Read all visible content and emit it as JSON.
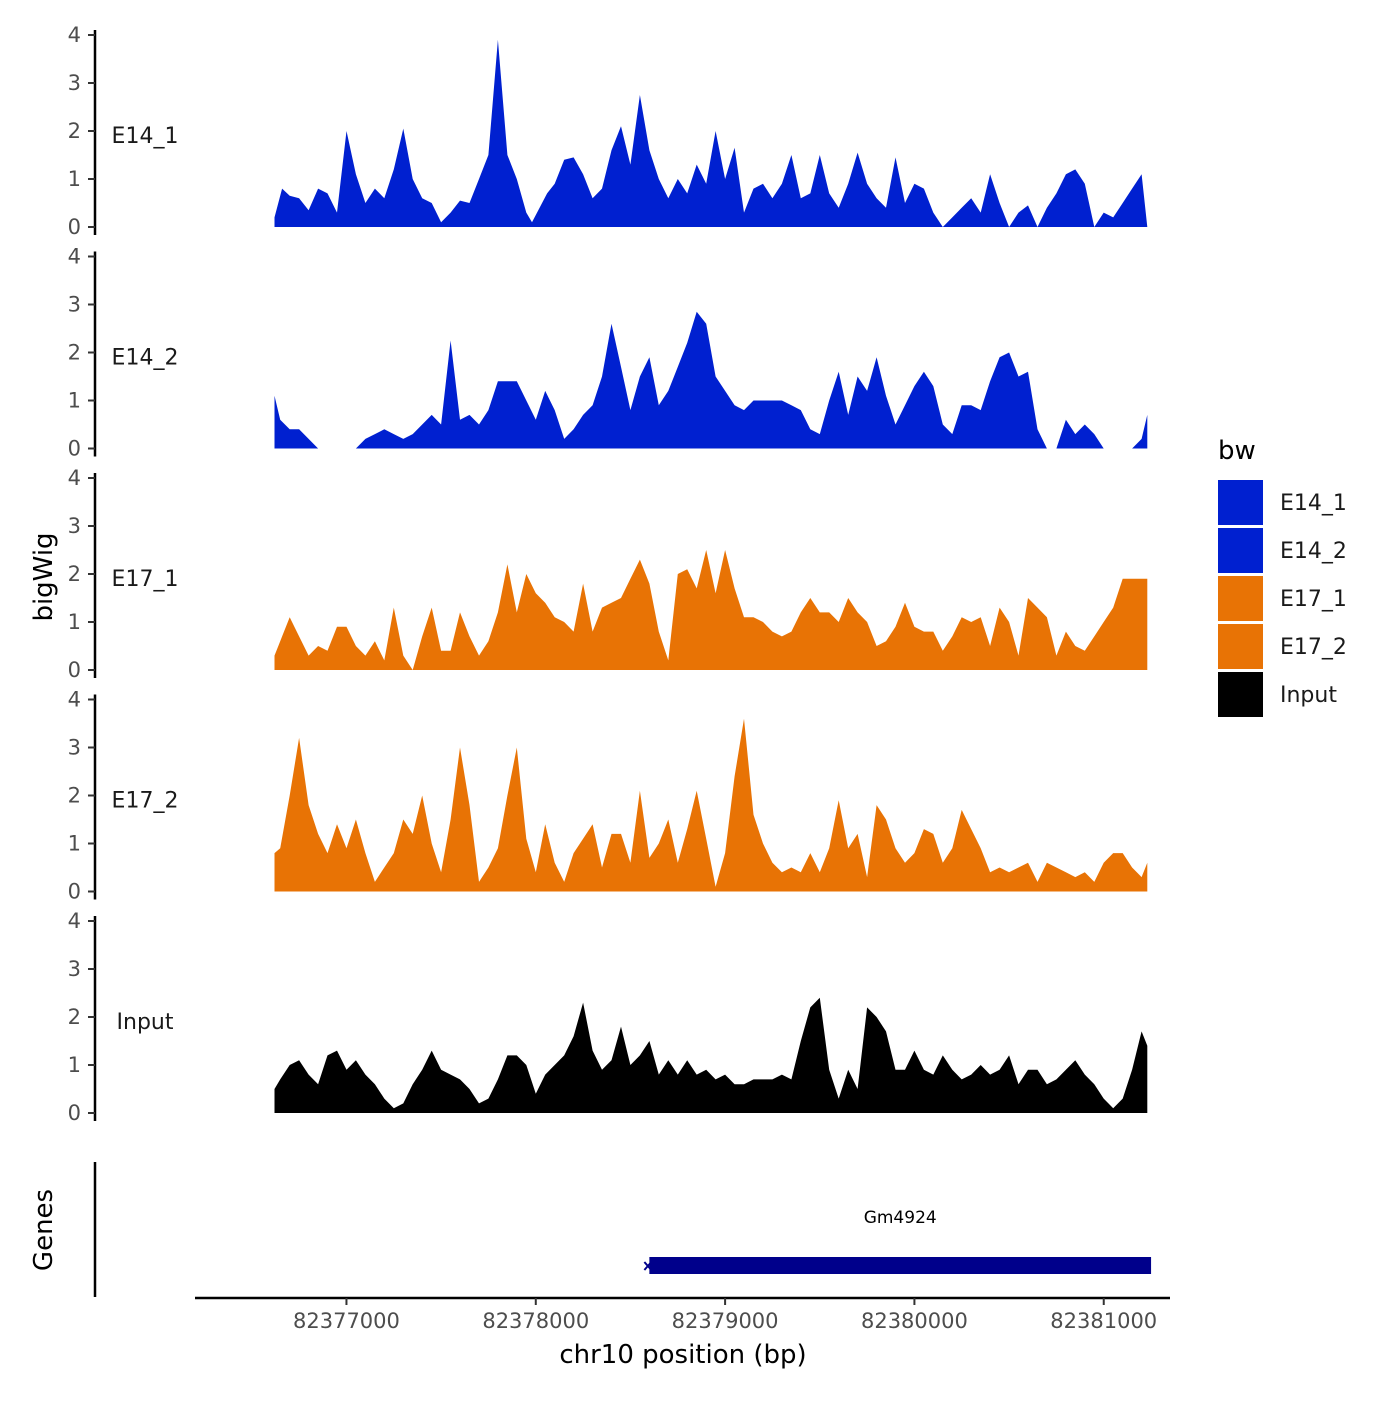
{
  "chart_data": {
    "type": "area",
    "title": "",
    "ylabel": "bigWig",
    "xlabel": "chr10 position (bp)",
    "xlim": [
      82376200,
      82381350
    ],
    "ylim": [
      0,
      4
    ],
    "yticks": [
      "0",
      "1",
      "2",
      "3",
      "4"
    ],
    "xticks": [
      {
        "value": 82377000,
        "label": "82377000"
      },
      {
        "value": 82378000,
        "label": "82378000"
      },
      {
        "value": 82379000,
        "label": "82379000"
      },
      {
        "value": 82380000,
        "label": "82380000"
      },
      {
        "value": 82381000,
        "label": "82381000"
      }
    ],
    "legend": {
      "title": "bw",
      "placement": "right",
      "entries": [
        {
          "label": "E14_1",
          "color": "#0020D0"
        },
        {
          "label": "E14_2",
          "color": "#0020D0"
        },
        {
          "label": "E17_1",
          "color": "#E87305"
        },
        {
          "label": "E17_2",
          "color": "#E87305"
        },
        {
          "label": "Input",
          "color": "#000000"
        }
      ]
    },
    "series": [
      {
        "name": "E14_1",
        "color": "#0020D0",
        "x": [
          82376620,
          82376660,
          82376700,
          82376750,
          82376800,
          82376850,
          82376900,
          82376950,
          82377000,
          82377050,
          82377100,
          82377150,
          82377200,
          82377250,
          82377300,
          82377350,
          82377400,
          82377450,
          82377500,
          82377550,
          82377600,
          82377650,
          82377700,
          82377750,
          82377800,
          82377850,
          82377900,
          82377950,
          82377980,
          82378020,
          82378060,
          82378100,
          82378150,
          82378200,
          82378250,
          82378300,
          82378350,
          82378400,
          82378450,
          82378500,
          82378550,
          82378600,
          82378650,
          82378700,
          82378750,
          82378800,
          82378850,
          82378900,
          82378950,
          82379000,
          82379050,
          82379100,
          82379150,
          82379200,
          82379250,
          82379300,
          82379350,
          82379400,
          82379450,
          82379500,
          82379550,
          82379600,
          82379650,
          82379700,
          82379750,
          82379800,
          82379850,
          82379900,
          82379950,
          82380000,
          82380050,
          82380100,
          82380150,
          82380200,
          82380250,
          82380300,
          82380350,
          82380400,
          82380450,
          82380500,
          82380550,
          82380600,
          82380650,
          82380700,
          82380750,
          82380800,
          82380850,
          82380900,
          82380950,
          82381000,
          82381050,
          82381100,
          82381150,
          82381200,
          82381230
        ],
        "values": [
          0.2,
          0.8,
          0.65,
          0.6,
          0.35,
          0.8,
          0.7,
          0.3,
          2.0,
          1.1,
          0.5,
          0.8,
          0.6,
          1.2,
          2.05,
          1.0,
          0.6,
          0.5,
          0.1,
          0.3,
          0.55,
          0.5,
          1.0,
          1.5,
          3.9,
          1.5,
          1.0,
          0.3,
          0.1,
          0.4,
          0.7,
          0.9,
          1.4,
          1.45,
          1.1,
          0.6,
          0.8,
          1.6,
          2.1,
          1.3,
          2.75,
          1.6,
          1.0,
          0.6,
          1.0,
          0.7,
          1.3,
          0.9,
          2.0,
          1.0,
          1.65,
          0.3,
          0.8,
          0.9,
          0.6,
          0.9,
          1.5,
          0.6,
          0.7,
          1.5,
          0.7,
          0.4,
          0.9,
          1.55,
          0.9,
          0.6,
          0.4,
          1.45,
          0.5,
          0.9,
          0.8,
          0.3,
          0.0,
          0.2,
          0.4,
          0.6,
          0.3,
          1.1,
          0.5,
          0.0,
          0.3,
          0.45,
          0.0,
          0.4,
          0.7,
          1.1,
          1.2,
          0.9,
          0.0,
          0.3,
          0.2,
          0.5,
          0.8,
          1.1,
          0.0
        ]
      },
      {
        "name": "E14_2",
        "color": "#0020D0",
        "x": [
          82376620,
          82376650,
          82376700,
          82376750,
          82376800,
          82376850,
          82376900,
          82376950,
          82377000,
          82377050,
          82377100,
          82377150,
          82377200,
          82377250,
          82377300,
          82377350,
          82377400,
          82377450,
          82377500,
          82377550,
          82377600,
          82377650,
          82377700,
          82377750,
          82377800,
          82377850,
          82377900,
          82377950,
          82378000,
          82378050,
          82378100,
          82378150,
          82378200,
          82378250,
          82378300,
          82378350,
          82378400,
          82378450,
          82378500,
          82378550,
          82378600,
          82378650,
          82378700,
          82378750,
          82378800,
          82378850,
          82378900,
          82378950,
          82379000,
          82379050,
          82379100,
          82379150,
          82379200,
          82379250,
          82379300,
          82379350,
          82379400,
          82379450,
          82379500,
          82379550,
          82379600,
          82379650,
          82379700,
          82379750,
          82379800,
          82379850,
          82379900,
          82379950,
          82380000,
          82380050,
          82380100,
          82380150,
          82380200,
          82380250,
          82380300,
          82380350,
          82380400,
          82380450,
          82380500,
          82380550,
          82380600,
          82380650,
          82380700,
          82380750,
          82380800,
          82380850,
          82380900,
          82380950,
          82381000,
          82381050,
          82381100,
          82381150,
          82381200,
          82381230
        ],
        "values": [
          1.1,
          0.6,
          0.4,
          0.4,
          0.2,
          0.0,
          0.0,
          0.0,
          0.0,
          0.0,
          0.2,
          0.3,
          0.4,
          0.3,
          0.2,
          0.3,
          0.5,
          0.7,
          0.5,
          2.25,
          0.6,
          0.7,
          0.5,
          0.8,
          1.4,
          1.4,
          1.4,
          1.0,
          0.6,
          1.2,
          0.8,
          0.2,
          0.4,
          0.7,
          0.9,
          1.5,
          2.6,
          1.7,
          0.8,
          1.5,
          1.9,
          0.9,
          1.2,
          1.7,
          2.2,
          2.85,
          2.6,
          1.5,
          1.2,
          0.9,
          0.8,
          1.0,
          1.0,
          1.0,
          1.0,
          0.9,
          0.8,
          0.4,
          0.3,
          1.0,
          1.6,
          0.7,
          1.5,
          1.2,
          1.9,
          1.1,
          0.5,
          0.9,
          1.3,
          1.6,
          1.3,
          0.5,
          0.3,
          0.9,
          0.9,
          0.8,
          1.4,
          1.9,
          2.0,
          1.5,
          1.6,
          0.4,
          0.0,
          0.0,
          0.6,
          0.3,
          0.5,
          0.3,
          0.0,
          0.0,
          0.0,
          0.0,
          0.2,
          0.7
        ]
      },
      {
        "name": "E17_1",
        "color": "#E87305",
        "x": [
          82376620,
          82376650,
          82376700,
          82376750,
          82376800,
          82376850,
          82376900,
          82376950,
          82377000,
          82377050,
          82377100,
          82377150,
          82377200,
          82377250,
          82377300,
          82377350,
          82377400,
          82377450,
          82377500,
          82377550,
          82377600,
          82377650,
          82377700,
          82377750,
          82377800,
          82377850,
          82377900,
          82377950,
          82378000,
          82378050,
          82378100,
          82378150,
          82378200,
          82378250,
          82378300,
          82378350,
          82378400,
          82378450,
          82378500,
          82378550,
          82378600,
          82378650,
          82378700,
          82378750,
          82378800,
          82378850,
          82378900,
          82378950,
          82379000,
          82379050,
          82379100,
          82379150,
          82379200,
          82379250,
          82379300,
          82379350,
          82379400,
          82379450,
          82379500,
          82379550,
          82379600,
          82379650,
          82379700,
          82379750,
          82379800,
          82379850,
          82379900,
          82379950,
          82380000,
          82380050,
          82380100,
          82380150,
          82380200,
          82380250,
          82380300,
          82380350,
          82380400,
          82380450,
          82380500,
          82380550,
          82380600,
          82380650,
          82380700,
          82380750,
          82380800,
          82380850,
          82380900,
          82380950,
          82381000,
          82381050,
          82381100,
          82381150,
          82381200,
          82381230
        ],
        "values": [
          0.3,
          0.6,
          1.1,
          0.7,
          0.3,
          0.5,
          0.4,
          0.9,
          0.9,
          0.5,
          0.3,
          0.6,
          0.2,
          1.3,
          0.3,
          0.0,
          0.7,
          1.3,
          0.4,
          0.4,
          1.2,
          0.7,
          0.3,
          0.6,
          1.2,
          2.2,
          1.2,
          2.0,
          1.6,
          1.4,
          1.1,
          1.0,
          0.8,
          1.8,
          0.8,
          1.3,
          1.4,
          1.5,
          1.9,
          2.3,
          1.8,
          0.8,
          0.2,
          2.0,
          2.1,
          1.7,
          2.5,
          1.6,
          2.5,
          1.7,
          1.1,
          1.1,
          1.0,
          0.8,
          0.7,
          0.8,
          1.2,
          1.5,
          1.2,
          1.2,
          1.0,
          1.5,
          1.2,
          1.0,
          0.5,
          0.6,
          0.9,
          1.4,
          0.9,
          0.8,
          0.8,
          0.4,
          0.7,
          1.1,
          1.0,
          1.1,
          0.5,
          1.3,
          1.0,
          0.3,
          1.5,
          1.3,
          1.1,
          0.3,
          0.8,
          0.5,
          0.4,
          0.7,
          1.0,
          1.3,
          1.9,
          1.9,
          1.9,
          1.9
        ]
      },
      {
        "name": "E17_2",
        "color": "#E87305",
        "x": [
          82376620,
          82376650,
          82376700,
          82376750,
          82376800,
          82376850,
          82376900,
          82376950,
          82377000,
          82377050,
          82377100,
          82377150,
          82377200,
          82377250,
          82377300,
          82377350,
          82377400,
          82377450,
          82377500,
          82377550,
          82377600,
          82377650,
          82377700,
          82377750,
          82377800,
          82377850,
          82377900,
          82377950,
          82378000,
          82378050,
          82378100,
          82378150,
          82378200,
          82378250,
          82378300,
          82378350,
          82378400,
          82378450,
          82378500,
          82378550,
          82378600,
          82378650,
          82378700,
          82378750,
          82378800,
          82378850,
          82378900,
          82378950,
          82379000,
          82379050,
          82379100,
          82379150,
          82379200,
          82379250,
          82379300,
          82379350,
          82379400,
          82379450,
          82379500,
          82379550,
          82379600,
          82379650,
          82379700,
          82379750,
          82379800,
          82379850,
          82379900,
          82379950,
          82380000,
          82380050,
          82380100,
          82380150,
          82380200,
          82380250,
          82380300,
          82380350,
          82380400,
          82380450,
          82380500,
          82380550,
          82380600,
          82380650,
          82380700,
          82380750,
          82380800,
          82380850,
          82380900,
          82380950,
          82381000,
          82381050,
          82381100,
          82381150,
          82381200,
          82381230
        ],
        "values": [
          0.8,
          0.9,
          2.0,
          3.2,
          1.8,
          1.2,
          0.8,
          1.4,
          0.9,
          1.5,
          0.8,
          0.2,
          0.5,
          0.8,
          1.5,
          1.2,
          2.0,
          1.0,
          0.4,
          1.5,
          3.0,
          1.8,
          0.2,
          0.5,
          0.9,
          2.0,
          3.0,
          1.1,
          0.4,
          1.4,
          0.6,
          0.2,
          0.8,
          1.1,
          1.4,
          0.5,
          1.2,
          1.2,
          0.6,
          2.1,
          0.7,
          1.0,
          1.5,
          0.6,
          1.3,
          2.1,
          1.1,
          0.1,
          0.8,
          2.4,
          3.6,
          1.6,
          1.0,
          0.6,
          0.4,
          0.5,
          0.4,
          0.8,
          0.4,
          0.9,
          1.9,
          0.9,
          1.2,
          0.3,
          1.8,
          1.5,
          0.9,
          0.6,
          0.8,
          1.3,
          1.2,
          0.6,
          0.9,
          1.7,
          1.3,
          0.9,
          0.4,
          0.5,
          0.4,
          0.5,
          0.6,
          0.2,
          0.6,
          0.5,
          0.4,
          0.3,
          0.4,
          0.2,
          0.6,
          0.8,
          0.8,
          0.5,
          0.3,
          0.6
        ]
      },
      {
        "name": "Input",
        "color": "#000000",
        "x": [
          82376620,
          82376650,
          82376700,
          82376750,
          82376800,
          82376850,
          82376900,
          82376950,
          82377000,
          82377050,
          82377100,
          82377150,
          82377200,
          82377250,
          82377300,
          82377350,
          82377400,
          82377450,
          82377500,
          82377550,
          82377600,
          82377650,
          82377700,
          82377750,
          82377800,
          82377850,
          82377900,
          82377950,
          82378000,
          82378050,
          82378100,
          82378150,
          82378200,
          82378250,
          82378300,
          82378350,
          82378400,
          82378450,
          82378500,
          82378550,
          82378600,
          82378650,
          82378700,
          82378750,
          82378800,
          82378850,
          82378900,
          82378950,
          82379000,
          82379050,
          82379100,
          82379150,
          82379200,
          82379250,
          82379300,
          82379350,
          82379400,
          82379450,
          82379500,
          82379550,
          82379600,
          82379650,
          82379700,
          82379750,
          82379800,
          82379850,
          82379900,
          82379950,
          82380000,
          82380050,
          82380100,
          82380150,
          82380200,
          82380250,
          82380300,
          82380350,
          82380400,
          82380450,
          82380500,
          82380550,
          82380600,
          82380650,
          82380700,
          82380750,
          82380800,
          82380850,
          82380900,
          82380950,
          82381000,
          82381050,
          82381100,
          82381150,
          82381200,
          82381230
        ],
        "values": [
          0.5,
          0.7,
          1.0,
          1.1,
          0.8,
          0.6,
          1.2,
          1.3,
          0.9,
          1.1,
          0.8,
          0.6,
          0.3,
          0.1,
          0.2,
          0.6,
          0.9,
          1.3,
          0.9,
          0.8,
          0.7,
          0.5,
          0.2,
          0.3,
          0.7,
          1.2,
          1.2,
          1.0,
          0.4,
          0.8,
          1.0,
          1.2,
          1.6,
          2.3,
          1.3,
          0.9,
          1.1,
          1.8,
          1.0,
          1.2,
          1.5,
          0.8,
          1.1,
          0.8,
          1.1,
          0.8,
          0.9,
          0.7,
          0.8,
          0.6,
          0.6,
          0.7,
          0.7,
          0.7,
          0.8,
          0.7,
          1.5,
          2.2,
          2.4,
          0.9,
          0.3,
          0.9,
          0.5,
          2.2,
          2.0,
          1.7,
          0.9,
          0.9,
          1.3,
          0.9,
          0.8,
          1.2,
          0.9,
          0.7,
          0.8,
          1.0,
          0.8,
          0.9,
          1.2,
          0.6,
          0.9,
          0.9,
          0.6,
          0.7,
          0.9,
          1.1,
          0.8,
          0.6,
          0.3,
          0.1,
          0.3,
          0.9,
          1.7,
          1.4
        ]
      }
    ],
    "genes_track": {
      "label": "Genes",
      "gene_name": "Gm4924",
      "start": 82378600,
      "end": 82381250,
      "color": "#00008B"
    }
  }
}
